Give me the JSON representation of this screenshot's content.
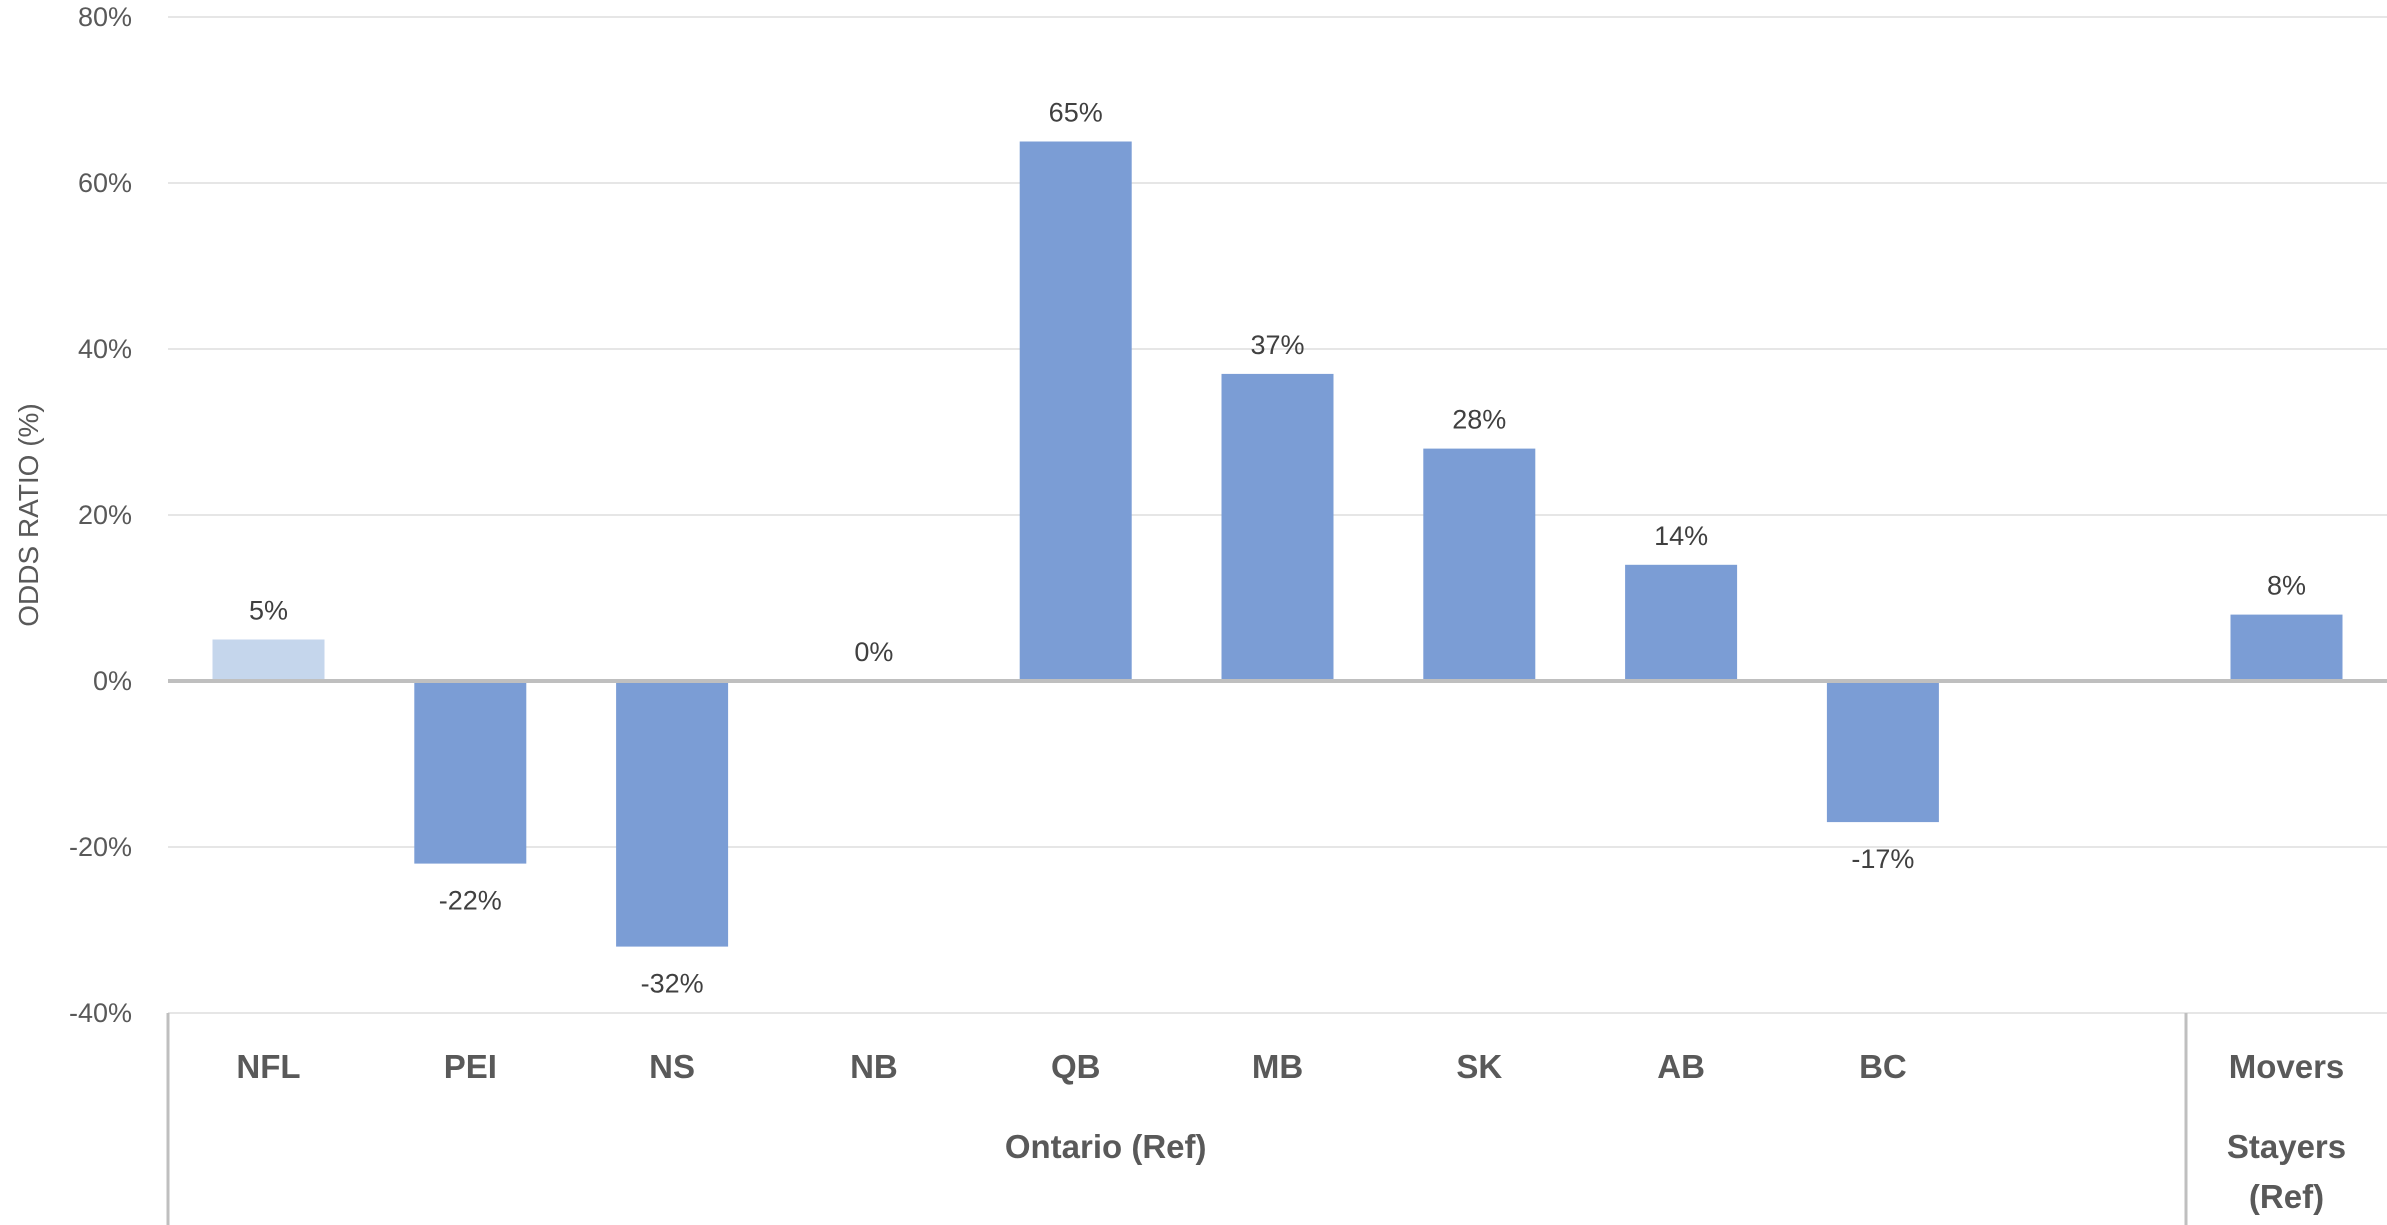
{
  "chart_data": {
    "type": "bar",
    "ylabel": "ODDS RATIO (%)",
    "ylim": [
      -40,
      80
    ],
    "yticks": [
      "80%",
      "60%",
      "40%",
      "20%",
      "0%",
      "-20%",
      "-40%"
    ],
    "grid": true,
    "categories": [
      "NFL",
      "PEI",
      "NS",
      "NB",
      "QB",
      "MB",
      "SK",
      "AB",
      "BC",
      "",
      "Movers"
    ],
    "values": [
      5,
      -22,
      -32,
      0,
      65,
      37,
      28,
      14,
      -17,
      null,
      8
    ],
    "data_labels": [
      "5%",
      "-22%",
      "-32%",
      "0%",
      "65%",
      "37%",
      "28%",
      "14%",
      "-17%",
      "",
      "8%"
    ],
    "group_labels": [
      {
        "label": "Ontario  (Ref)",
        "lines": [
          "Ontario  (Ref)"
        ]
      },
      {
        "label": "Stayers (Ref)",
        "lines": [
          "Stayers",
          "(Ref)"
        ]
      }
    ],
    "colors": {
      "bar": "#7b9dd5",
      "bar_highlight": "#c5d6ec",
      "grid": "#e6e6e6",
      "axis": "#bfbfbf"
    }
  }
}
